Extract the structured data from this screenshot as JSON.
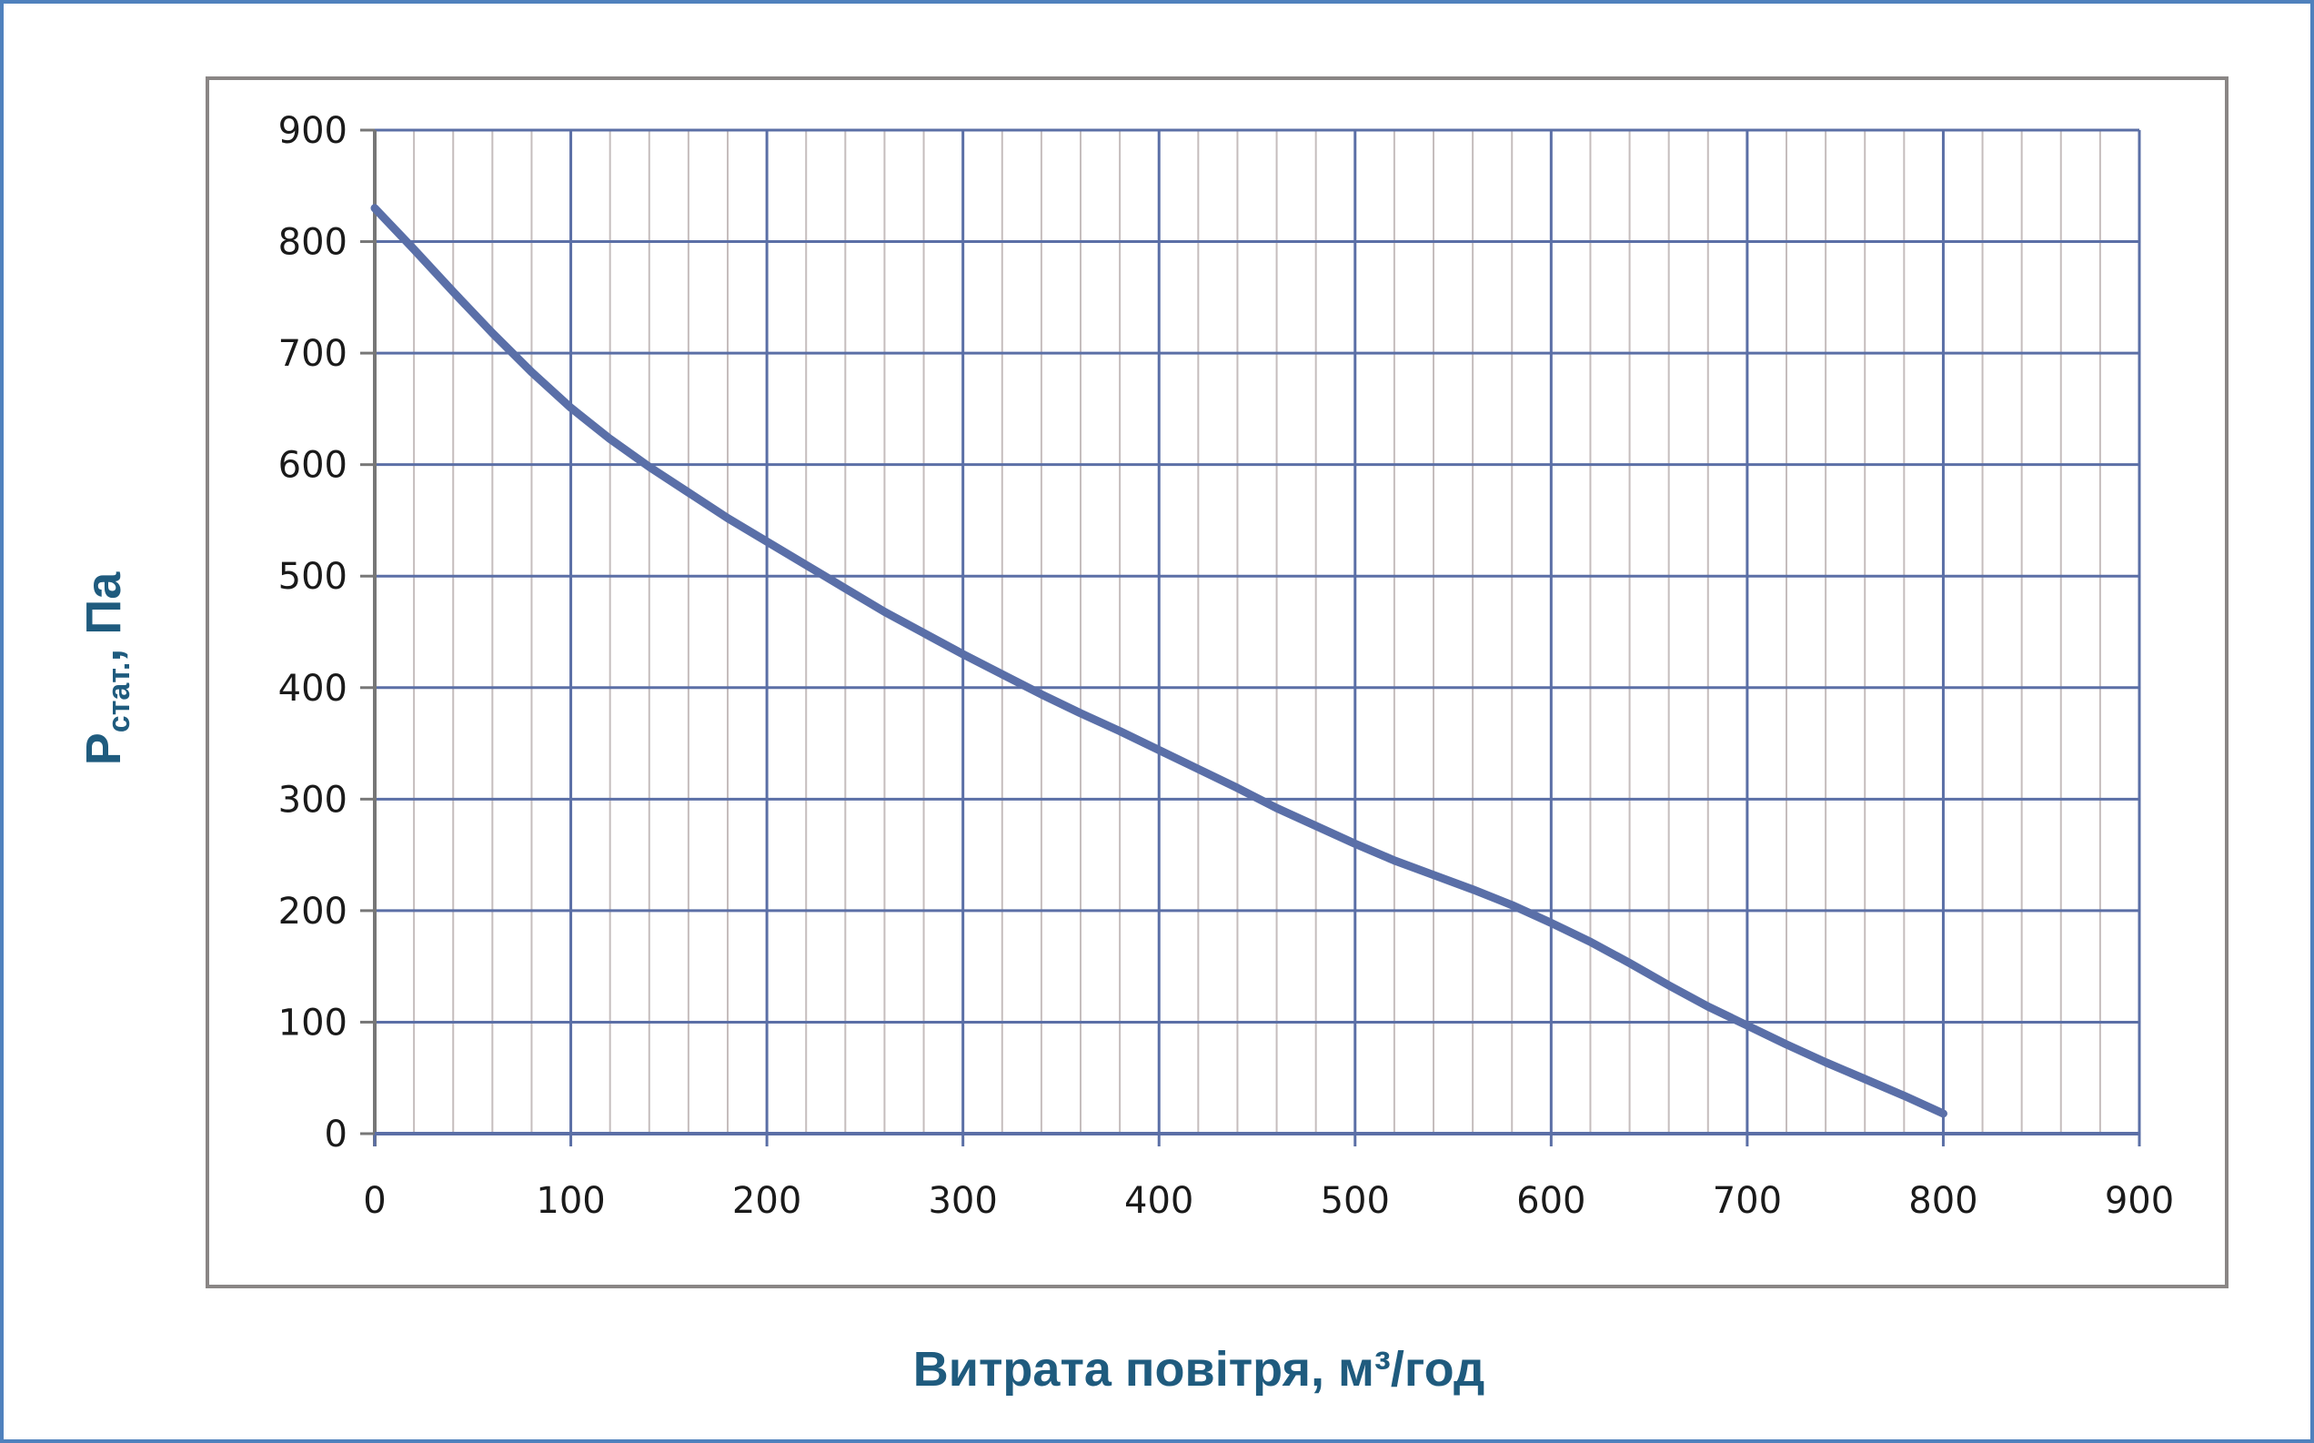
{
  "chart_data": {
    "type": "line",
    "title": "",
    "xlabel": "Витрата повітря, м³/год",
    "ylabel_main": "P",
    "ylabel_sub": "стат.",
    "ylabel_unit": ", Па",
    "xlim": [
      0,
      900
    ],
    "ylim": [
      0,
      900
    ],
    "x_ticks": [
      0,
      100,
      200,
      300,
      400,
      500,
      600,
      700,
      800,
      900
    ],
    "y_ticks": [
      0,
      100,
      200,
      300,
      400,
      500,
      600,
      700,
      800,
      900
    ],
    "x_minor_step": 20,
    "grid": true,
    "legend": "none",
    "series": [
      {
        "color": "#5a6fa8",
        "x": [
          0,
          20,
          40,
          60,
          80,
          100,
          120,
          140,
          160,
          180,
          200,
          220,
          240,
          260,
          280,
          300,
          320,
          340,
          360,
          380,
          400,
          420,
          440,
          460,
          480,
          500,
          520,
          540,
          560,
          580,
          600,
          620,
          640,
          660,
          680,
          700,
          720,
          740,
          760,
          780,
          800
        ],
        "y": [
          830,
          793,
          755,
          718,
          683,
          651,
          623,
          598,
          575,
          552,
          531,
          510,
          489,
          468,
          449,
          430,
          412,
          394,
          377,
          361,
          344,
          327,
          310,
          292,
          276,
          260,
          245,
          232,
          219,
          205,
          189,
          172,
          153,
          133,
          114,
          97,
          80,
          64,
          49,
          34,
          18
        ]
      }
    ],
    "colors": {
      "frame_border": "#4f81bd",
      "plot_border": "#8a8685",
      "major_grid": "#5b6fa6",
      "minor_grid": "#c5bdbd",
      "axis_title": "#1f5b7e"
    }
  }
}
